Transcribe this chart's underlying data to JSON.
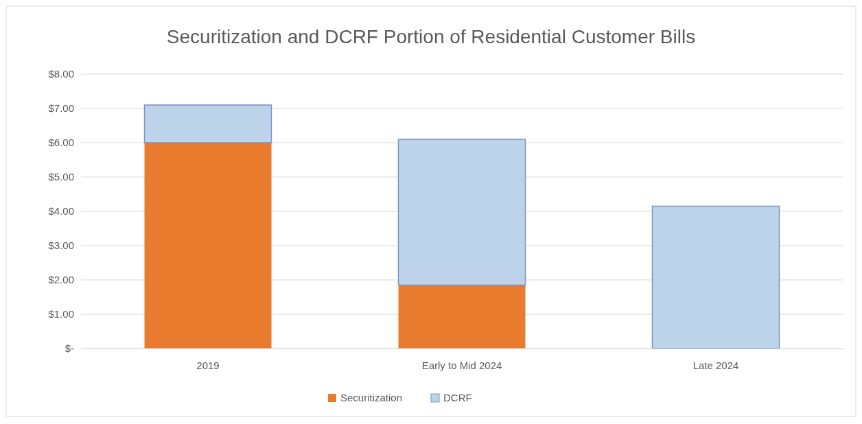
{
  "chart_data": {
    "type": "bar",
    "title": "Securitization and DCRF Portion of Residential Customer Bills",
    "categories": [
      "2019",
      "Early to Mid 2024",
      "Late 2024"
    ],
    "stacked": true,
    "series": [
      {
        "name": "Securitization",
        "color": "#e97b2e",
        "values": [
          6.0,
          1.85,
          null
        ]
      },
      {
        "name": "DCRF",
        "color": "#bdd3ea",
        "values": [
          1.1,
          4.25,
          4.15
        ]
      }
    ],
    "ylim": [
      0,
      8
    ],
    "yticks": [
      {
        "value": 0,
        "label": "$-"
      },
      {
        "value": 1,
        "label": "$1.00"
      },
      {
        "value": 2,
        "label": "$2.00"
      },
      {
        "value": 3,
        "label": "$3.00"
      },
      {
        "value": 4,
        "label": "$4.00"
      },
      {
        "value": 5,
        "label": "$5.00"
      },
      {
        "value": 6,
        "label": "$6.00"
      },
      {
        "value": 7,
        "label": "$7.00"
      },
      {
        "value": 8,
        "label": "$8.00"
      }
    ],
    "grid": "y",
    "legend": "bottom"
  }
}
